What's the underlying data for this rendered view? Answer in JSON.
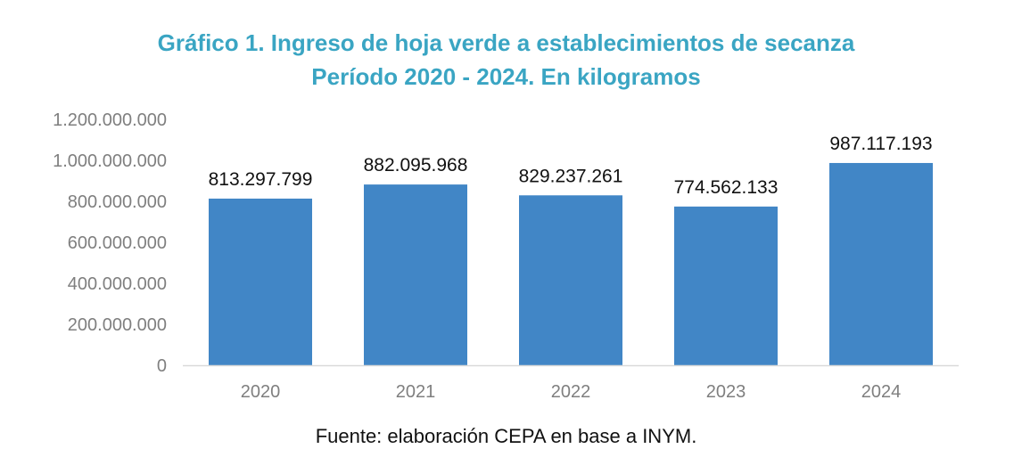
{
  "title_line1": "Gráfico 1. Ingreso de hoja verde a establecimientos de secanza",
  "title_line2": "Período 2020 - 2024. En kilogramos",
  "source": "Fuente: elaboración CEPA en base a INYM.",
  "colors": {
    "title": "#3aa5c3",
    "bar": "#4186c6",
    "axis_text": "#7f7f7f",
    "label_text": "#111111"
  },
  "chart_data": {
    "type": "bar",
    "categories": [
      "2020",
      "2021",
      "2022",
      "2023",
      "2024"
    ],
    "values": [
      813297799,
      882095968,
      829237261,
      774562133,
      987117193
    ],
    "data_labels": [
      "813.297.799",
      "882.095.968",
      "829.237.261",
      "774.562.133",
      "987.117.193"
    ],
    "ylim": [
      0,
      1200000000
    ],
    "yticks": [
      0,
      200000000,
      400000000,
      600000000,
      800000000,
      1000000000,
      1200000000
    ],
    "ytick_labels": [
      "0",
      "200.000.000",
      "400.000.000",
      "600.000.000",
      "800.000.000",
      "1.000.000.000",
      "1.200.000.000"
    ],
    "grid": false,
    "legend": "none",
    "xlabel": "",
    "ylabel": ""
  }
}
